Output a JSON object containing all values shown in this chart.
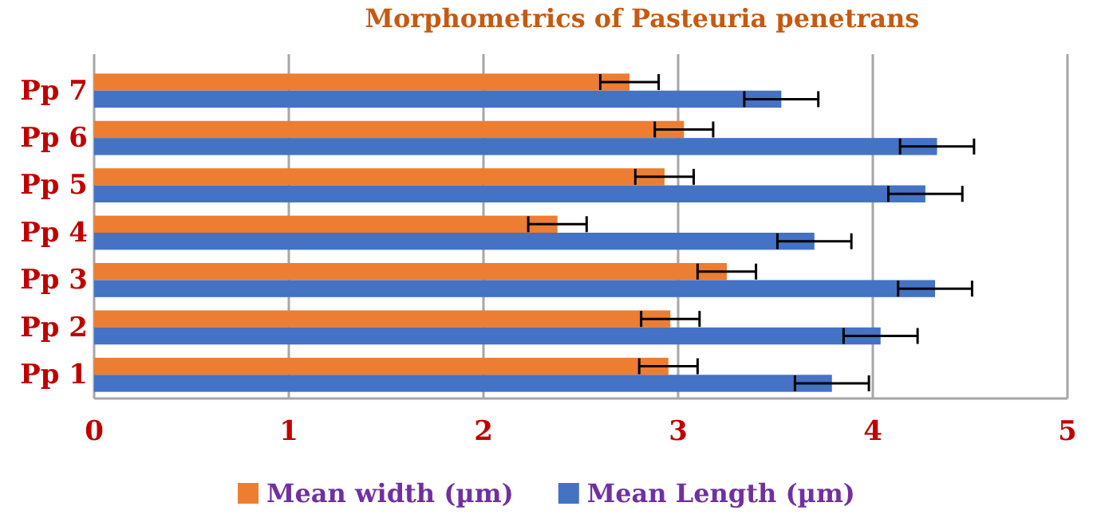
{
  "chart_data": {
    "type": "bar",
    "orientation": "horizontal",
    "title": "Morphometrics of Pasteuria penetrans",
    "categories": [
      "Pp 7",
      "Pp 6",
      "Pp 5",
      "Pp 4",
      "Pp 3",
      "Pp 2",
      "Pp 1"
    ],
    "series": [
      {
        "name": "Mean width (µm)",
        "color": "#ed7d31",
        "values": [
          2.75,
          3.03,
          2.93,
          2.38,
          3.25,
          2.96,
          2.95
        ],
        "errors": [
          0.15,
          0.15,
          0.15,
          0.15,
          0.15,
          0.15,
          0.15
        ]
      },
      {
        "name": "Mean Length (µm)",
        "color": "#4472c4",
        "values": [
          3.53,
          4.33,
          4.27,
          3.7,
          4.32,
          4.04,
          3.79
        ],
        "errors": [
          0.19,
          0.19,
          0.19,
          0.19,
          0.19,
          0.19,
          0.19
        ]
      }
    ],
    "xlim": [
      0,
      5
    ],
    "xticks": [
      0,
      1,
      2,
      3,
      4,
      5
    ],
    "grid": "x",
    "legend": "bottom"
  }
}
